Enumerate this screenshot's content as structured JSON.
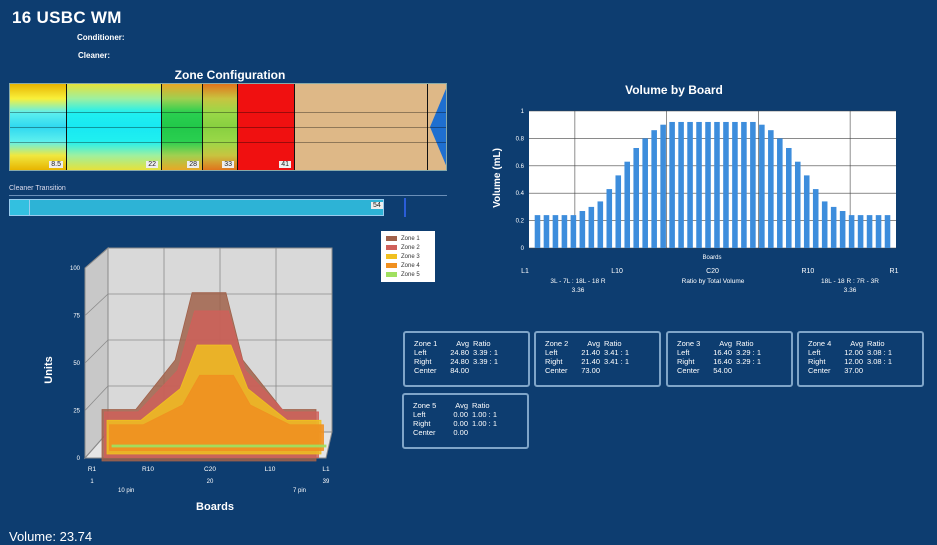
{
  "header": {
    "title": "16 USBC WM",
    "conditioner_label": "Conditioner:",
    "cleaner_label": "Cleaner:"
  },
  "zone_config": {
    "title": "Zone Configuration",
    "segments": [
      {
        "value": "8.5",
        "colors": [
          "#e8b400",
          "#f8f03a",
          "#5ef0ee",
          "#2fd8f0",
          "#5ef0ee",
          "#f0e840",
          "#e8b400"
        ]
      },
      {
        "value": "22",
        "colors": [
          "#e6e23a",
          "#9ef0a0",
          "#20f0f0",
          "#18e8f2",
          "#20f0f0",
          "#9ef0a0",
          "#e6e23a"
        ]
      },
      {
        "value": "28",
        "colors": [
          "#e8a826",
          "#a0d050",
          "#2ad050",
          "#22c84a",
          "#2ad050",
          "#a0d050",
          "#e8a826"
        ]
      },
      {
        "value": "33",
        "colors": [
          "#e0741c",
          "#c8c440",
          "#9ad848",
          "#88d040",
          "#9ad848",
          "#c8c440",
          "#e0741c"
        ]
      },
      {
        "value": "41",
        "colors": [
          "#f01010",
          "#f01010",
          "#f01010",
          "#f01010",
          "#f01010",
          "#f01010",
          "#f01010"
        ]
      }
    ],
    "tail_color": "#deb887",
    "arrow_color": "#1e6fd0"
  },
  "cleaner_transition": {
    "label": "Cleaner Transition",
    "value": "54"
  },
  "volume_by_board": {
    "title": "Volume by Board",
    "ylabel": "Volume (mL)",
    "xlabel": "Boards",
    "ticks_x": [
      "L1",
      "L10",
      "C20",
      "R10",
      "R1"
    ],
    "left_ratio_label": "3L - 7L : 18L - 18 R",
    "left_ratio_value": "3.36",
    "center_ratio_label": "Ratio by Total Volume",
    "right_ratio_label": "18L - 18 R : 7R - 3R",
    "right_ratio_value": "3.36"
  },
  "zone_stats": [
    {
      "name": "Zone 1",
      "left_avg": "24.80",
      "left_ratio": "3.39 : 1",
      "right_avg": "24.80",
      "right_ratio": "3.39 : 1",
      "center": "84.00"
    },
    {
      "name": "Zone 2",
      "left_avg": "21.40",
      "left_ratio": "3.41 : 1",
      "right_avg": "21.40",
      "right_ratio": "3.41 : 1",
      "center": "73.00"
    },
    {
      "name": "Zone 3",
      "left_avg": "16.40",
      "left_ratio": "3.29 : 1",
      "right_avg": "16.40",
      "right_ratio": "3.29 : 1",
      "center": "54.00"
    },
    {
      "name": "Zone 4",
      "left_avg": "12.00",
      "left_ratio": "3.08 : 1",
      "right_avg": "12.00",
      "right_ratio": "3.08 : 1",
      "center": "37.00"
    },
    {
      "name": "Zone 5",
      "left_avg": "0.00",
      "left_ratio": "1.00 : 1",
      "right_avg": "0.00",
      "right_ratio": "1.00 : 1",
      "center": "0.00"
    }
  ],
  "stat_labels": {
    "avg": "Avg",
    "ratio": "Ratio",
    "left": "Left",
    "right": "Right",
    "center": "Center"
  },
  "units_chart": {
    "ylabel": "Units",
    "xlabel": "Boards",
    "tick_labels": [
      "R1",
      "R10",
      "C20",
      "L10",
      "L1"
    ],
    "sub_labels": [
      "1",
      "20",
      "39"
    ],
    "left_pin": "10 pin",
    "right_pin": "7 pin",
    "yticks": [
      0,
      25,
      50,
      75,
      100
    ]
  },
  "legend": {
    "items": [
      {
        "label": "Zone 1",
        "color": "#a0614a"
      },
      {
        "label": "Zone 2",
        "color": "#d0605a"
      },
      {
        "label": "Zone 3",
        "color": "#f0c020"
      },
      {
        "label": "Zone 4",
        "color": "#f09020"
      },
      {
        "label": "Zone 5",
        "color": "#a0e060"
      }
    ]
  },
  "volume": {
    "text": "Volume: 23.74"
  },
  "chart_data": [
    {
      "type": "bar",
      "title": "Volume by Board",
      "xlabel": "Boards",
      "ylabel": "Volume (mL)",
      "ylim": [
        0,
        1
      ],
      "y_ticks": [
        0,
        0.2,
        0.4,
        0.6,
        0.8,
        1
      ],
      "x_tick_labels": [
        "L1",
        "L10",
        "C20",
        "R10",
        "R1"
      ],
      "grid": true,
      "values": [
        0.24,
        0.24,
        0.24,
        0.24,
        0.24,
        0.27,
        0.3,
        0.34,
        0.43,
        0.53,
        0.63,
        0.73,
        0.8,
        0.86,
        0.9,
        0.92,
        0.92,
        0.92,
        0.92,
        0.92,
        0.92,
        0.92,
        0.92,
        0.92,
        0.92,
        0.9,
        0.86,
        0.8,
        0.73,
        0.63,
        0.53,
        0.43,
        0.34,
        0.3,
        0.27,
        0.24,
        0.24,
        0.24,
        0.24,
        0.24
      ]
    },
    {
      "type": "area",
      "ylabel": "Units",
      "xlabel": "Boards",
      "ylim": [
        0,
        100
      ],
      "y_ticks": [
        0,
        25,
        50,
        75,
        100
      ],
      "x_tick_labels": [
        "R1",
        "R10",
        "C20",
        "L10",
        "L1"
      ],
      "legend_position": "top-right",
      "x": [
        1,
        7,
        14,
        17,
        23,
        26,
        33,
        39
      ],
      "series": [
        {
          "name": "Zone 1",
          "values": [
            25,
            25,
            50,
            84,
            84,
            50,
            25,
            25
          ]
        },
        {
          "name": "Zone 2",
          "values": [
            22,
            22,
            43,
            73,
            73,
            43,
            22,
            22
          ]
        },
        {
          "name": "Zone 3",
          "values": [
            16,
            16,
            32,
            54,
            54,
            32,
            16,
            16
          ]
        },
        {
          "name": "Zone 4",
          "values": [
            12,
            12,
            22,
            37,
            37,
            22,
            12,
            12
          ]
        },
        {
          "name": "Zone 5",
          "values": [
            0,
            0,
            0,
            0,
            0,
            0,
            0,
            0
          ]
        }
      ]
    }
  ]
}
